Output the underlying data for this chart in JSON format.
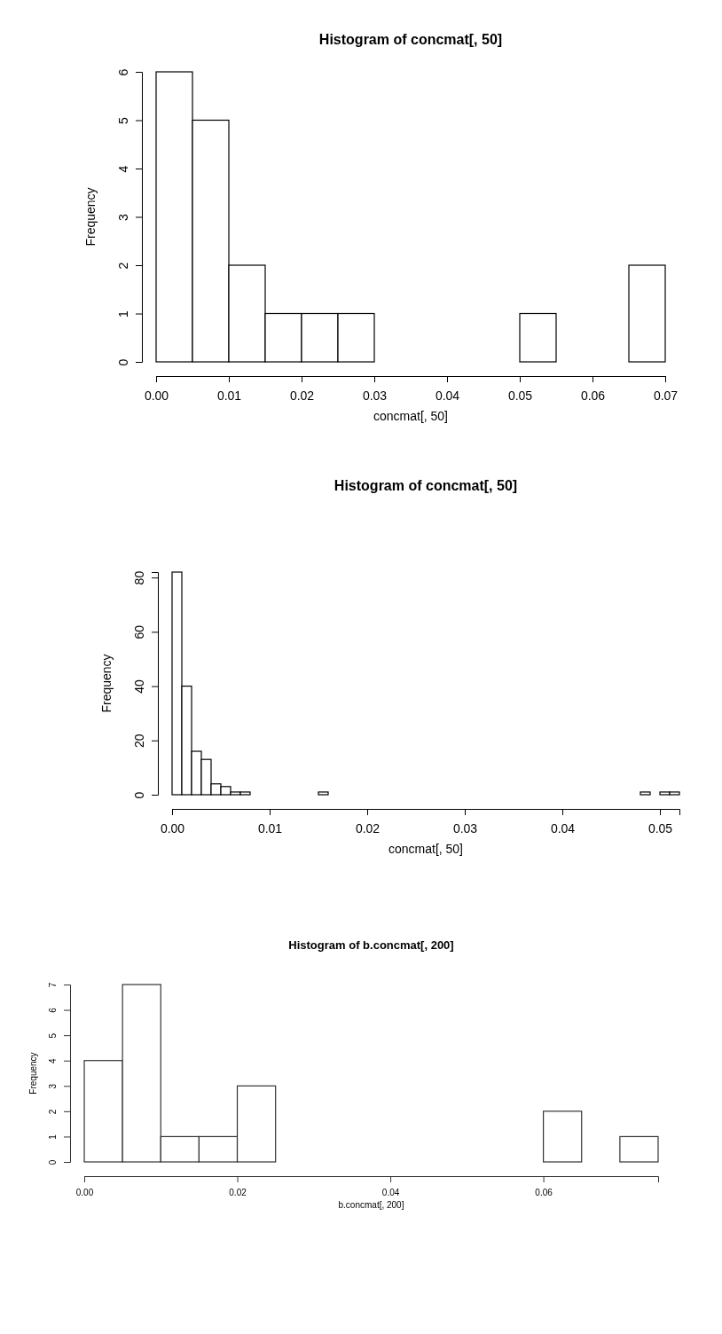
{
  "chart_data": [
    {
      "type": "histogram",
      "title": "Histogram of concmat[, 50]",
      "xlabel": "concmat[, 50]",
      "ylabel": "Frequency",
      "bins": [
        0,
        0.005,
        0.01,
        0.015,
        0.02,
        0.025,
        0.03,
        0.035,
        0.04,
        0.045,
        0.05,
        0.055,
        0.06,
        0.065,
        0.07
      ],
      "values": [
        6,
        5,
        2,
        1,
        1,
        1,
        0,
        0,
        0,
        0,
        1,
        0,
        0,
        2
      ],
      "xlim": [
        0,
        0.07
      ],
      "xticks": [
        {
          "value": 0,
          "label": "0.00"
        },
        {
          "value": 0.01,
          "label": "0.01"
        },
        {
          "value": 0.02,
          "label": "0.02"
        },
        {
          "value": 0.03,
          "label": "0.03"
        },
        {
          "value": 0.04,
          "label": "0.04"
        },
        {
          "value": 0.05,
          "label": "0.05"
        },
        {
          "value": 0.06,
          "label": "0.06"
        },
        {
          "value": 0.07,
          "label": "0.07"
        }
      ],
      "ylim": [
        0,
        6
      ],
      "yticks": [
        0,
        1,
        2,
        3,
        4,
        5,
        6
      ],
      "color": "#ffffff"
    },
    {
      "type": "histogram",
      "title": "Histogram of concmat[, 50]",
      "xlabel": "concmat[, 50]",
      "ylabel": "Frequency",
      "bins": [
        0,
        0.001,
        0.002,
        0.003,
        0.004,
        0.005,
        0.006,
        0.007,
        0.008,
        0.009,
        0.01,
        0.011,
        0.012,
        0.013,
        0.014,
        0.015,
        0.016,
        0.017,
        0.018,
        0.019,
        0.02,
        0.021,
        0.022,
        0.023,
        0.024,
        0.025,
        0.026,
        0.027,
        0.028,
        0.029,
        0.03,
        0.031,
        0.032,
        0.033,
        0.034,
        0.035,
        0.036,
        0.037,
        0.038,
        0.039,
        0.04,
        0.041,
        0.042,
        0.043,
        0.044,
        0.045,
        0.046,
        0.047,
        0.048,
        0.049,
        0.05,
        0.051,
        0.052
      ],
      "values": [
        82,
        40,
        16,
        13,
        4,
        3,
        1,
        1,
        0,
        0,
        0,
        0,
        0,
        0,
        0,
        1,
        0,
        0,
        0,
        0,
        0,
        0,
        0,
        0,
        0,
        0,
        0,
        0,
        0,
        0,
        0,
        0,
        0,
        0,
        0,
        0,
        0,
        0,
        0,
        0,
        0,
        0,
        0,
        0,
        0,
        0,
        0,
        0,
        1,
        0,
        1,
        1
      ],
      "xlim": [
        0,
        0.052
      ],
      "xticks": [
        {
          "value": 0,
          "label": "0.00"
        },
        {
          "value": 0.01,
          "label": "0.01"
        },
        {
          "value": 0.02,
          "label": "0.02"
        },
        {
          "value": 0.03,
          "label": "0.03"
        },
        {
          "value": 0.04,
          "label": "0.04"
        },
        {
          "value": 0.05,
          "label": "0.05"
        }
      ],
      "ylim": [
        0,
        82
      ],
      "yticks": [
        0,
        20,
        40,
        60,
        80
      ],
      "color": "#ffffff"
    },
    {
      "type": "histogram",
      "title": "Histogram of b.concmat[, 200]",
      "xlabel": "b.concmat[, 200]",
      "ylabel": "Frequency",
      "bins": [
        0,
        0.005,
        0.01,
        0.015,
        0.02,
        0.025,
        0.03,
        0.035,
        0.04,
        0.045,
        0.05,
        0.055,
        0.06,
        0.065,
        0.07,
        0.075
      ],
      "values": [
        4,
        7,
        1,
        1,
        3,
        0,
        0,
        0,
        0,
        0,
        0,
        0,
        2,
        0,
        1
      ],
      "xlim": [
        0,
        0.075
      ],
      "xticks": [
        {
          "value": 0,
          "label": "0.00"
        },
        {
          "value": 0.02,
          "label": "0.02"
        },
        {
          "value": 0.04,
          "label": "0.04"
        },
        {
          "value": 0.06,
          "label": "0.06"
        }
      ],
      "ylim": [
        0,
        7
      ],
      "yticks": [
        0,
        1,
        2,
        3,
        4,
        5,
        6,
        7
      ],
      "color": "#ffffff"
    }
  ]
}
